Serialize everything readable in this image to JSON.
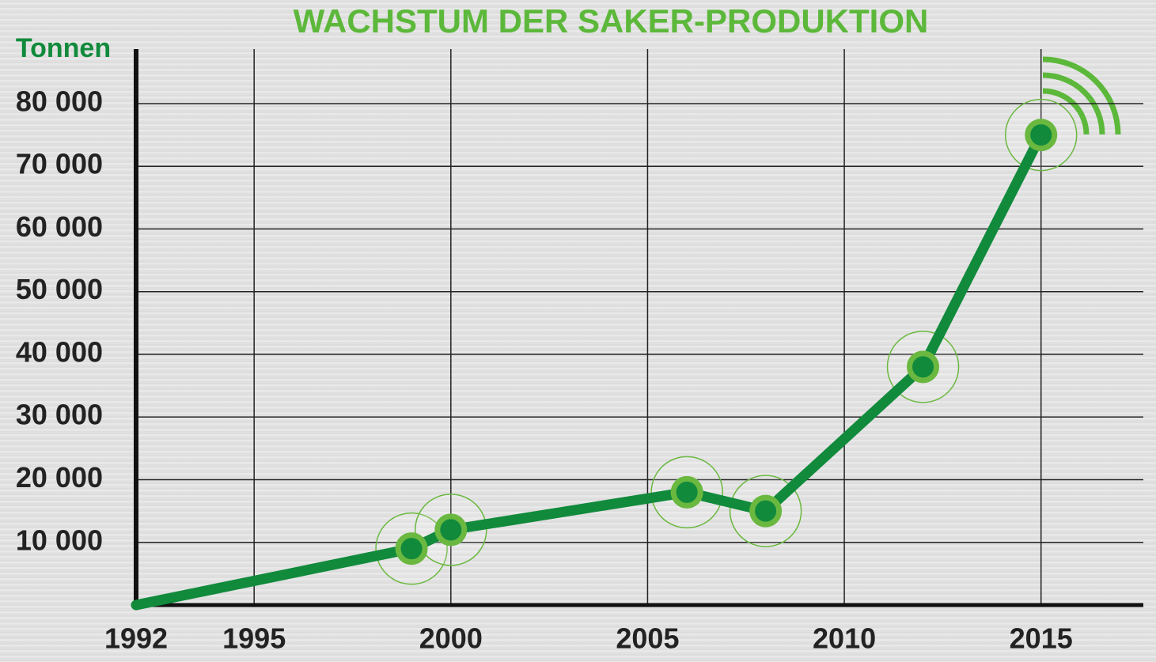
{
  "chart_data": {
    "type": "line",
    "title": "WACHSTUM DER SAKER-PRODUKTION",
    "y_label": "Tonnen",
    "x": [
      1992,
      1999,
      2000,
      2006,
      2008,
      2012,
      2015
    ],
    "values": [
      0,
      9000,
      12000,
      18000,
      15000,
      38000,
      75000
    ],
    "color": "#118a3c",
    "marker_color": "#6ab83f",
    "xlim": [
      1992,
      2017.6
    ],
    "xticks": [
      1992,
      1995,
      2000,
      2005,
      2010,
      2015
    ],
    "ylim": [
      0,
      88700
    ],
    "yticks": [
      {
        "value": 10000,
        "label": "10 000"
      },
      {
        "value": 20000,
        "label": "20 000"
      },
      {
        "value": 30000,
        "label": "30 000"
      },
      {
        "value": 40000,
        "label": "40 000"
      },
      {
        "value": 50000,
        "label": "50 000"
      },
      {
        "value": 60000,
        "label": "60 000"
      },
      {
        "value": 70000,
        "label": "70 000"
      },
      {
        "value": 80000,
        "label": "80 000"
      }
    ],
    "grid": true
  }
}
